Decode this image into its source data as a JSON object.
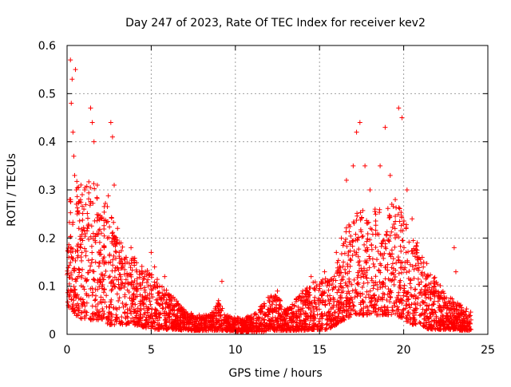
{
  "colors": {
    "marker": "#ff0000",
    "axis": "#000000",
    "grid": "#a0a0a0",
    "background": "#ffffff"
  },
  "chart_data": {
    "type": "scatter",
    "title": "Day 247 of 2023, Rate Of TEC Index for receiver kev2",
    "xlabel": "GPS time / hours",
    "ylabel": "ROTI / TECUs",
    "xlim": [
      0,
      25
    ],
    "ylim": [
      0,
      0.6
    ],
    "grid": true,
    "marker": "+",
    "x_ticks": [
      0,
      5,
      10,
      15,
      20,
      25
    ],
    "y_ticks": [
      0,
      0.1,
      0.2,
      0.3,
      0.4,
      0.5,
      0.6
    ],
    "x_tick_labels": [
      "0",
      "5",
      "10",
      "15",
      "20",
      "25"
    ],
    "y_tick_labels": [
      "0",
      "0.1",
      "0.2",
      "0.3",
      "0.4",
      "0.5",
      "0.6"
    ],
    "series": [
      {
        "name": "kev2",
        "points": [
          [
            0.1,
            0.16
          ],
          [
            0.15,
            0.28
          ],
          [
            0.2,
            0.57
          ],
          [
            0.25,
            0.48
          ],
          [
            0.3,
            0.53
          ],
          [
            0.35,
            0.42
          ],
          [
            0.4,
            0.37
          ],
          [
            0.45,
            0.33
          ],
          [
            0.5,
            0.55
          ],
          [
            0.55,
            0.3
          ],
          [
            0.6,
            0.25
          ],
          [
            0.7,
            0.22
          ],
          [
            0.8,
            0.18
          ],
          [
            0.9,
            0.29
          ],
          [
            1.0,
            0.26
          ],
          [
            1.2,
            0.22
          ],
          [
            1.4,
            0.47
          ],
          [
            1.5,
            0.44
          ],
          [
            1.6,
            0.4
          ],
          [
            1.8,
            0.31
          ],
          [
            2.0,
            0.24
          ],
          [
            2.2,
            0.18
          ],
          [
            2.4,
            0.2
          ],
          [
            2.6,
            0.44
          ],
          [
            2.7,
            0.41
          ],
          [
            2.8,
            0.31
          ],
          [
            3.0,
            0.22
          ],
          [
            3.2,
            0.19
          ],
          [
            3.5,
            0.16
          ],
          [
            3.8,
            0.18
          ],
          [
            4.0,
            0.15
          ],
          [
            4.3,
            0.13
          ],
          [
            4.6,
            0.12
          ],
          [
            5.0,
            0.17
          ],
          [
            5.2,
            0.14
          ],
          [
            5.5,
            0.1
          ],
          [
            5.8,
            0.12
          ],
          [
            6.0,
            0.08
          ],
          [
            6.3,
            0.06
          ],
          [
            6.6,
            0.05
          ],
          [
            7.0,
            0.04
          ],
          [
            7.5,
            0.035
          ],
          [
            8.0,
            0.03
          ],
          [
            8.5,
            0.028
          ],
          [
            9.0,
            0.07
          ],
          [
            9.2,
            0.11
          ],
          [
            9.5,
            0.03
          ],
          [
            10.0,
            0.025
          ],
          [
            10.5,
            0.02
          ],
          [
            11.0,
            0.03
          ],
          [
            11.5,
            0.05
          ],
          [
            12.0,
            0.07
          ],
          [
            12.5,
            0.09
          ],
          [
            13.0,
            0.04
          ],
          [
            13.5,
            0.06
          ],
          [
            14.0,
            0.09
          ],
          [
            14.5,
            0.12
          ],
          [
            15.0,
            0.1
          ],
          [
            15.3,
            0.13
          ],
          [
            15.6,
            0.11
          ],
          [
            16.0,
            0.17
          ],
          [
            16.3,
            0.2
          ],
          [
            16.6,
            0.32
          ],
          [
            17.0,
            0.35
          ],
          [
            17.2,
            0.42
          ],
          [
            17.4,
            0.44
          ],
          [
            17.7,
            0.35
          ],
          [
            18.0,
            0.3
          ],
          [
            18.3,
            0.26
          ],
          [
            18.6,
            0.35
          ],
          [
            18.9,
            0.43
          ],
          [
            19.2,
            0.33
          ],
          [
            19.5,
            0.28
          ],
          [
            19.7,
            0.47
          ],
          [
            19.9,
            0.45
          ],
          [
            20.2,
            0.3
          ],
          [
            20.5,
            0.24
          ],
          [
            20.8,
            0.19
          ],
          [
            21.1,
            0.16
          ],
          [
            21.4,
            0.12
          ],
          [
            21.8,
            0.1
          ],
          [
            22.2,
            0.08
          ],
          [
            22.6,
            0.06
          ],
          [
            23.0,
            0.18
          ],
          [
            23.1,
            0.13
          ],
          [
            23.4,
            0.05
          ],
          [
            23.7,
            0.04
          ],
          [
            24.0,
            0.03
          ]
        ],
        "envelope": {
          "hours": [
            0,
            0.5,
            1,
            1.5,
            2,
            2.5,
            3,
            3.5,
            4,
            4.5,
            5,
            5.5,
            6,
            6.5,
            7,
            7.5,
            8,
            8.5,
            9,
            9.5,
            10,
            10.5,
            11,
            11.5,
            12,
            12.5,
            13,
            13.5,
            14,
            14.5,
            15,
            15.5,
            16,
            16.5,
            17,
            17.5,
            18,
            18.5,
            19,
            19.5,
            20,
            20.5,
            21,
            21.5,
            22,
            22.5,
            23,
            23.5,
            24
          ],
          "upper": [
            0.28,
            0.33,
            0.3,
            0.34,
            0.26,
            0.3,
            0.2,
            0.17,
            0.16,
            0.14,
            0.13,
            0.11,
            0.09,
            0.07,
            0.05,
            0.045,
            0.04,
            0.04,
            0.07,
            0.04,
            0.035,
            0.035,
            0.04,
            0.06,
            0.08,
            0.08,
            0.05,
            0.07,
            0.09,
            0.11,
            0.11,
            0.12,
            0.14,
            0.22,
            0.25,
            0.26,
            0.24,
            0.27,
            0.26,
            0.28,
            0.25,
            0.2,
            0.17,
            0.14,
            0.11,
            0.09,
            0.07,
            0.06,
            0.05
          ],
          "lower": [
            0.06,
            0.04,
            0.03,
            0.03,
            0.03,
            0.02,
            0.02,
            0.02,
            0.02,
            0.015,
            0.01,
            0.01,
            0.01,
            0.01,
            0.008,
            0.008,
            0.008,
            0.008,
            0.008,
            0.008,
            0.005,
            0.005,
            0.005,
            0.005,
            0.008,
            0.008,
            0.008,
            0.008,
            0.008,
            0.01,
            0.01,
            0.01,
            0.02,
            0.03,
            0.04,
            0.04,
            0.04,
            0.04,
            0.04,
            0.04,
            0.03,
            0.02,
            0.02,
            0.01,
            0.01,
            0.01,
            0.01,
            0.008,
            0.008
          ]
        }
      }
    ]
  }
}
